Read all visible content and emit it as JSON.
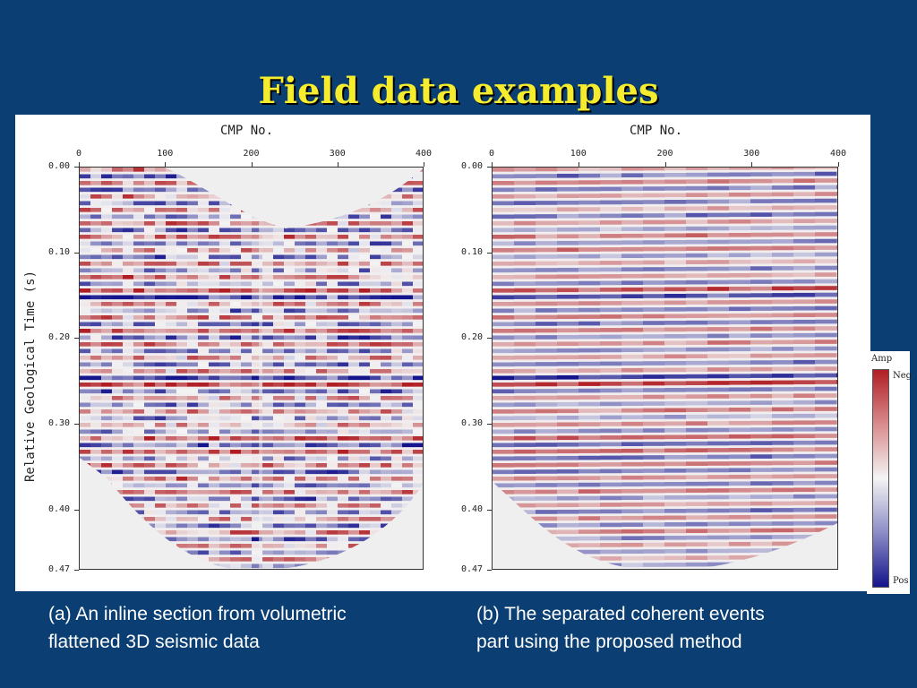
{
  "slide": {
    "title": "Field data examples"
  },
  "figure": {
    "xlabel": "CMP No.",
    "ylabel": "Relative Geological Time (s)",
    "x_ticks": [
      "0",
      "100",
      "200",
      "300",
      "400"
    ],
    "y_ticks": [
      "0.00",
      "0.10",
      "0.20",
      "0.30",
      "0.40",
      "0.47"
    ],
    "colorbar": {
      "title": "Amp",
      "top_label": "Neg",
      "bottom_label": "Pos",
      "colors": [
        "#b01e24",
        "#f4f4f4",
        "#14148c"
      ]
    }
  },
  "chart_data": [
    {
      "type": "heatmap",
      "xlabel": "CMP No.",
      "ylabel": "Relative Geological Time (s)",
      "xlim": [
        0,
        400
      ],
      "ylim": [
        0.47,
        0.0
      ],
      "x_ticks": [
        0,
        100,
        200,
        300,
        400
      ],
      "y_ticks": [
        0.0,
        0.1,
        0.2,
        0.3,
        0.4,
        0.47
      ],
      "caption": "(a) An inline section from volumetric flattened 3D seismic data"
    },
    {
      "type": "heatmap",
      "xlabel": "CMP No.",
      "xlim": [
        0,
        400
      ],
      "ylim": [
        0.47,
        0.0
      ],
      "x_ticks": [
        0,
        100,
        200,
        300,
        400
      ],
      "y_ticks": [
        0.0,
        0.1,
        0.2,
        0.3,
        0.4,
        0.47
      ],
      "caption": "(b) The separated coherent events part using the proposed method"
    }
  ],
  "captions": {
    "left": {
      "line1": "(a) An inline section from volumetric",
      "line2": "flattened 3D seismic data"
    },
    "right": {
      "line1": "(b) The separated coherent events",
      "line2": "part using the proposed method"
    }
  }
}
